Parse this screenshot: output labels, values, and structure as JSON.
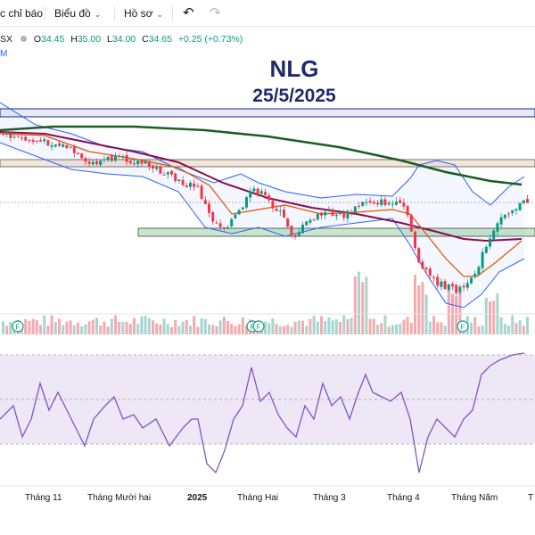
{
  "toolbar": {
    "indicators_label": "c chỉ báo",
    "chart_type_label": "Biểu đồ",
    "profile_label": "Hồ sơ",
    "undo_icon": "undo-icon",
    "redo_icon": "redo-icon"
  },
  "legend": {
    "symbol": "SX",
    "open_key": "O",
    "open": "34.45",
    "high_key": "H",
    "high": "35.00",
    "low_key": "L",
    "low": "34.00",
    "close_key": "C",
    "close": "34.65",
    "change": "+0.25 (+0.73%)",
    "mini_label": "M"
  },
  "annotation": {
    "ticker": "NLG",
    "date": "25/5/2025"
  },
  "x_axis": [
    "Tháng 11",
    "Tháng Mười hai",
    "2025",
    "Tháng Hai",
    "Tháng 3",
    "Tháng 4",
    "Tháng Năm",
    "T"
  ],
  "markers": {
    "earnings": "F"
  },
  "colors": {
    "up": "#089981",
    "down": "#f23645",
    "ma_long": "#1b5e20",
    "ma_mid": "#880e4f",
    "ma_short": "#e65100",
    "bollinger": "#2962ff",
    "rsi": "#7e57c2",
    "rsi_band": "#ede7f6",
    "zone": "#c8e6c9"
  },
  "chart_data": {
    "type": "candlestick",
    "title": "NLG",
    "subtitle": "25/5/2025",
    "x_ticks": [
      "Tháng 11",
      "Tháng Mười hai",
      "2025",
      "Tháng Hai",
      "Tháng 3",
      "Tháng 4",
      "Tháng Năm"
    ],
    "last": {
      "open": 34.45,
      "high": 35.0,
      "low": 34.0,
      "close": 34.65,
      "change": 0.25,
      "change_pct": 0.73
    },
    "grid": false
  }
}
